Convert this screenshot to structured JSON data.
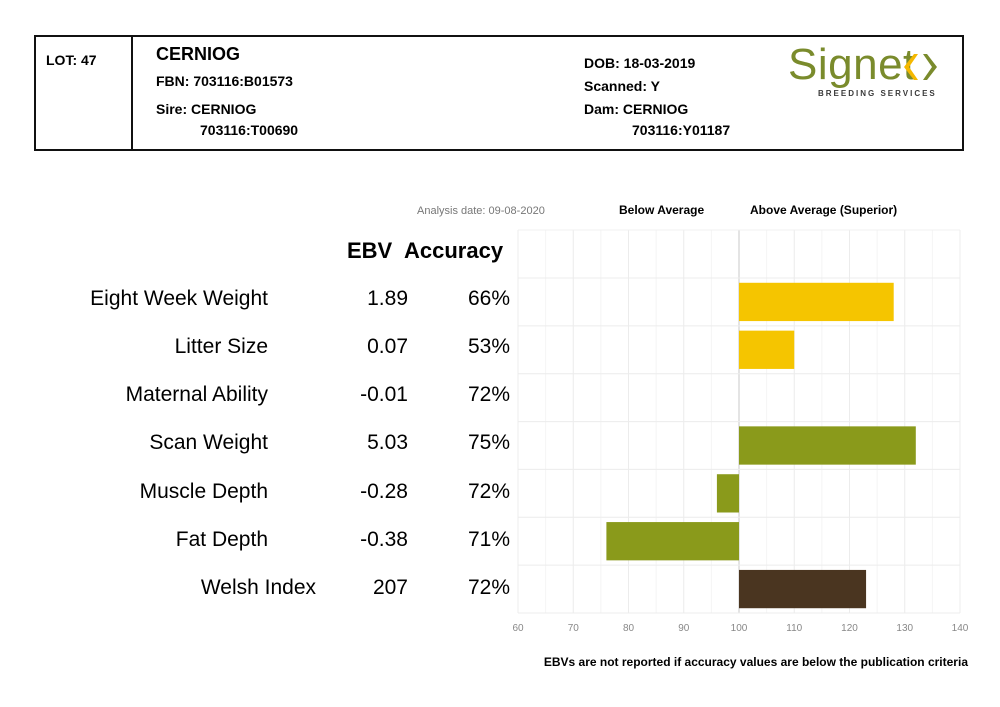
{
  "header": {
    "lot": "LOT: 47",
    "name": "CERNIOG",
    "fbn": "FBN: 703116:B01573",
    "sire_label": "Sire: CERNIOG",
    "sire_id": "703116:T00690",
    "dob": "DOB: 18-03-2019",
    "scanned": "Scanned: Y",
    "dam_label": "Dam: CERNIOG",
    "dam_id": "703116:Y01187",
    "logo_text": "Signet",
    "logo_subtext": "BREEDING SERVICES",
    "logo_color": "#7a8b2c"
  },
  "legend": {
    "analysis_date": "Analysis date: 09-08-2020",
    "below": "Below Average",
    "above": "Above Average (Superior)"
  },
  "table": {
    "ebv_header": "EBV",
    "accuracy_header": "Accuracy",
    "rows": [
      {
        "trait": "Eight Week Weight",
        "ebv": "1.89",
        "accuracy": "66%"
      },
      {
        "trait": "Litter Size",
        "ebv": "0.07",
        "accuracy": "53%"
      },
      {
        "trait": "Maternal Ability",
        "ebv": "-0.01",
        "accuracy": "72%"
      },
      {
        "trait": "Scan Weight",
        "ebv": "5.03",
        "accuracy": "75%"
      },
      {
        "trait": "Muscle Depth",
        "ebv": "-0.28",
        "accuracy": "72%"
      },
      {
        "trait": "Fat Depth",
        "ebv": "-0.38",
        "accuracy": "71%"
      },
      {
        "trait": "Welsh Index",
        "ebv": "207",
        "accuracy": "72%"
      }
    ]
  },
  "footnote": "EBVs are not reported if accuracy values are below the publication criteria",
  "chart_data": {
    "type": "bar",
    "orientation": "horizontal",
    "baseline": 100,
    "xlim": [
      60,
      140
    ],
    "xticks": [
      "60",
      "70",
      "80",
      "90",
      "100",
      "110",
      "120",
      "130",
      "140"
    ],
    "categories": [
      "Eight Week Weight",
      "Litter Size",
      "Maternal Ability",
      "Scan Weight",
      "Muscle Depth",
      "Fat Depth",
      "Welsh Index"
    ],
    "values": [
      128,
      110,
      100,
      132,
      96,
      76,
      123
    ],
    "colors": [
      "#f5c500",
      "#f5c500",
      "#f5c500",
      "#8a9a1b",
      "#8a9a1b",
      "#8a9a1b",
      "#4a3520"
    ],
    "grid": true
  }
}
